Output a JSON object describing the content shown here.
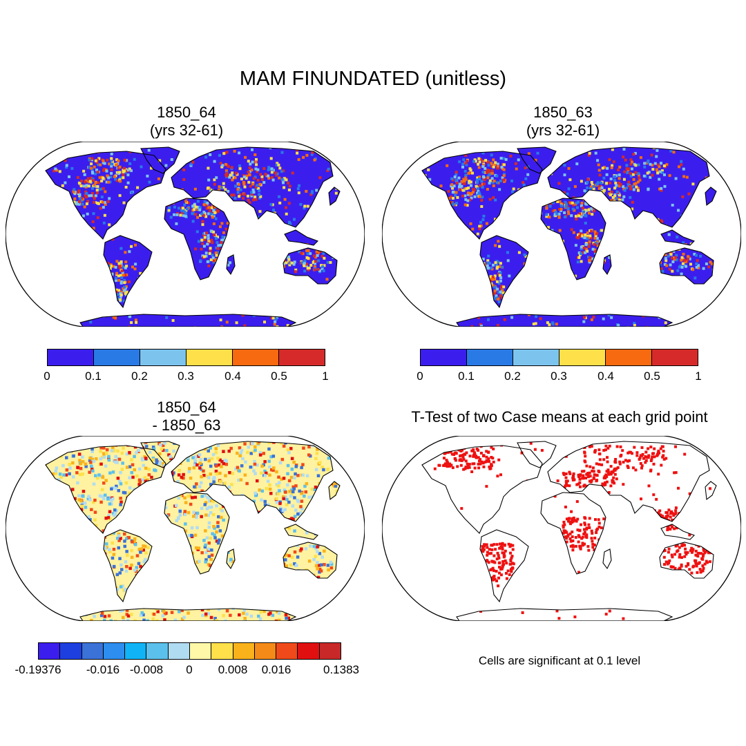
{
  "figure": {
    "title": "MAM FINUNDATED (unitless)"
  },
  "panels": [
    {
      "title_line1": "1850_64",
      "title_line2": "(yrs 32-61)"
    },
    {
      "title_line1": "1850_63",
      "title_line2": "(yrs 32-61)"
    },
    {
      "title_line1": "1850_64",
      "title_line2": "- 1850_63"
    },
    {
      "title": "T-Test of two Case means at each grid point",
      "note": "Cells are significant at 0.1 level"
    }
  ],
  "colorbars": {
    "mean": {
      "labels": [
        "0",
        "0.1",
        "0.2",
        "0.3",
        "0.4",
        "0.5",
        "1"
      ],
      "colors": [
        "#3b1eee",
        "#2a7ae6",
        "#7cc4ee",
        "#fde04a",
        "#f76a10",
        "#d62a2a"
      ]
    },
    "diff": {
      "labels": [
        "-0.19376",
        "-0.016",
        "-0.008",
        "0",
        "0.008",
        "0.016",
        "0.1383"
      ],
      "colors": [
        "#3b1eee",
        "#1e3fe0",
        "#3a72d8",
        "#2e8ef0",
        "#10b4f6",
        "#5cc0ec",
        "#b0dcf2",
        "#fff8a8",
        "#fde04a",
        "#f9b21a",
        "#f58a18",
        "#f04a1a",
        "#e01010",
        "#c82828"
      ]
    }
  },
  "chart_data": [
    {
      "type": "heatmap",
      "title": "1850_64 (yrs 32-61)",
      "projection": "Robinson",
      "field": "MAM FINUNDATED",
      "range": [
        0,
        1
      ]
    },
    {
      "type": "heatmap",
      "title": "1850_63 (yrs 32-61)",
      "projection": "Robinson",
      "field": "MAM FINUNDATED",
      "range": [
        0,
        1
      ]
    },
    {
      "type": "heatmap",
      "title": "1850_64 - 1850_63",
      "projection": "Robinson",
      "field": "difference",
      "range": [
        -0.19376,
        0.1383
      ]
    },
    {
      "type": "heatmap",
      "title": "T-Test of two Case means at each grid point",
      "projection": "Robinson",
      "significance_level": 0.1
    }
  ]
}
